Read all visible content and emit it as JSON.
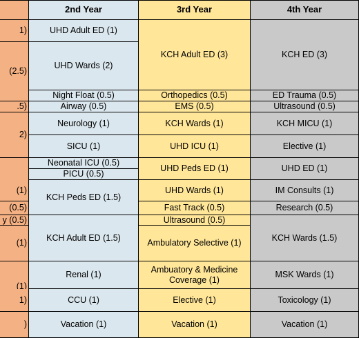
{
  "headers": {
    "year1": "",
    "year2": "2nd Year",
    "year3": "3rd Year",
    "year4": "4th Year"
  },
  "year1": [
    "1)",
    "(2.5)",
    ".5)",
    "2)",
    "(1)",
    "(0.5)",
    "y (0.5)",
    "(1)",
    "(1)",
    "1)",
    ")"
  ],
  "year2": [
    "UHD Adult ED (1)",
    "UHD Wards (2)",
    "Night Float (0.5)",
    "Airway (0.5)",
    "Neurology (1)",
    "SICU (1)",
    "Neonatal ICU (0.5)",
    "PICU (0.5)",
    "KCH Peds ED (1.5)",
    "KCH Adult ED (1.5)",
    "Renal (1)",
    "CCU (1)",
    "Vacation (1)"
  ],
  "year3": [
    "KCH Adult ED (3)",
    "Orthopedics (0.5)",
    "EMS (0.5)",
    "KCH Wards (1)",
    "UHD ICU (1)",
    "UHD Peds ED (1)",
    "UHD Wards (1)",
    "Fast Track (0.5)",
    "Ultrasound (0.5)",
    "Ambulatory Selective (1)",
    "Ambuatory & Medicine Coverage (1)",
    "Elective (1)",
    "Vacation (1)"
  ],
  "year4": [
    "KCH ED (3)",
    "ED Trauma (0.5)",
    "Ultrasound (0.5)",
    "KCH MICU (1)",
    "Elective (1)",
    "UHD ED (1)",
    "IM Consults (1)",
    "Research (0.5)",
    "KCH Wards (1.5)",
    "MSK Wards (1)",
    "Toxicology (1)",
    "Vacation (1)"
  ],
  "colors": {
    "year1": "#f4b183",
    "year2": "#dbe7ee",
    "year3": "#ffe699",
    "year4": "#c9c9c9"
  }
}
